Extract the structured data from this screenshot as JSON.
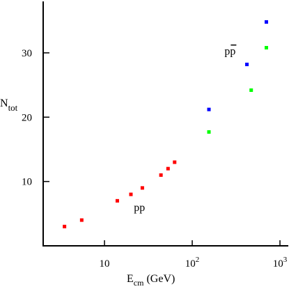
{
  "chart_data": {
    "type": "scatter",
    "xlabel": "E",
    "xlabel_sub": "cm",
    "xlabel_unit": " (GeV)",
    "ylabel": "N",
    "ylabel_sub": "tot",
    "x_scale": "log",
    "xlim": [
      2,
      1200
    ],
    "ylim": [
      0,
      38
    ],
    "grid": false,
    "x_ticks": [
      {
        "value": 10,
        "base": "10",
        "exp": ""
      },
      {
        "value": 100,
        "base": "10",
        "exp": "2"
      },
      {
        "value": 1000,
        "base": "10",
        "exp": "3"
      }
    ],
    "y_ticks": [
      {
        "value": 10,
        "label": "10"
      },
      {
        "value": 20,
        "label": "20"
      },
      {
        "value": 30,
        "label": "30"
      }
    ],
    "annotations": [
      {
        "text": "pp",
        "x": 25,
        "y": 5.4,
        "overbar": false
      },
      {
        "text": "pp",
        "x": 270,
        "y": 29.7,
        "overbar": true
      }
    ],
    "series": [
      {
        "color": "#ff0000",
        "points": [
          [
            3.5,
            3
          ],
          [
            5.5,
            4
          ],
          [
            14,
            7
          ],
          [
            20,
            8
          ],
          [
            27,
            9
          ],
          [
            44,
            11
          ],
          [
            53,
            12
          ],
          [
            63,
            13
          ]
        ]
      },
      {
        "color": "#0000ff",
        "points": [
          [
            155,
            21.2
          ],
          [
            420,
            28.2
          ],
          [
            700,
            34.8
          ]
        ]
      },
      {
        "color": "#00ff00",
        "points": [
          [
            155,
            17.7
          ],
          [
            470,
            24.2
          ],
          [
            700,
            30.8
          ]
        ]
      }
    ]
  }
}
